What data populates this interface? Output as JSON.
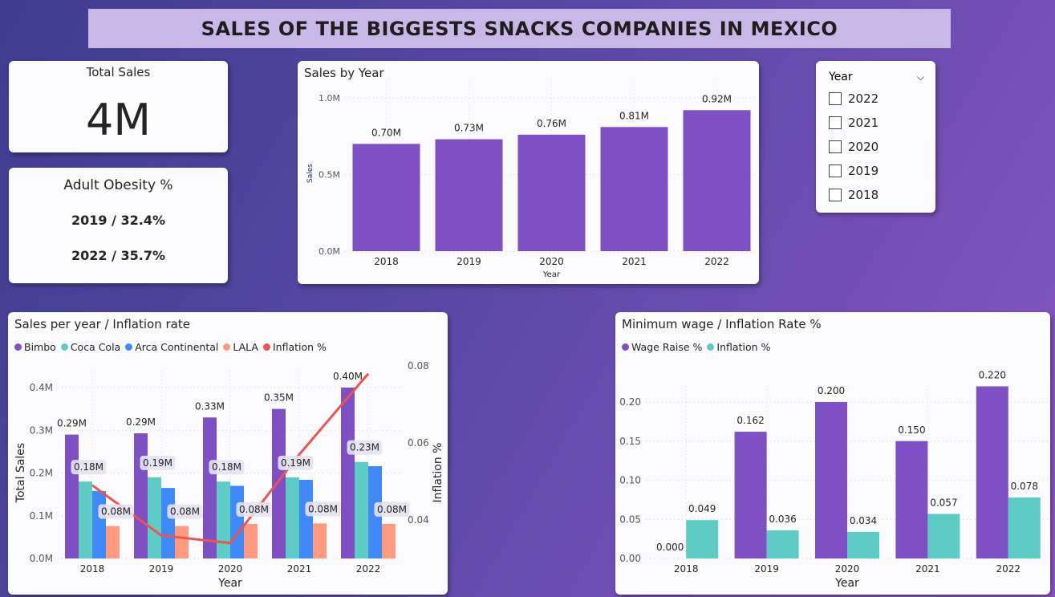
{
  "title": "SALES OF THE BIGGESTS SNACKS COMPANIES IN MEXICO",
  "total_sales": {
    "label": "Total Sales",
    "value": "4M"
  },
  "obesity": {
    "label": "Adult Obesity %",
    "line1": "2019 / 32.4%",
    "line2": "2022 / 35.7%"
  },
  "slicer": {
    "title": "Year",
    "icon": "chevron-down-icon",
    "options": [
      {
        "label": "2022",
        "checked": false
      },
      {
        "label": "2021",
        "checked": false
      },
      {
        "label": "2020",
        "checked": false
      },
      {
        "label": "2019",
        "checked": false
      },
      {
        "label": "2018",
        "checked": false
      }
    ]
  },
  "chart_data": [
    {
      "type": "bar",
      "title": "Sales by Year",
      "xlabel": "Year",
      "ylabel": "Sales",
      "categories": [
        "2018",
        "2019",
        "2020",
        "2021",
        "2022"
      ],
      "values": [
        0.7,
        0.73,
        0.76,
        0.81,
        0.92
      ],
      "labels": [
        "0.70M",
        "0.73M",
        "0.76M",
        "0.81M",
        "0.92M"
      ],
      "yticks": [
        "0.0M",
        "0.5M",
        "1.0M"
      ],
      "ylim": [
        0,
        1.0
      ],
      "unit": "M",
      "color": "#7f4fc4",
      "grid": true
    },
    {
      "type": "bar+line",
      "title": "Sales per year / Inflation rate",
      "xlabel": "Year",
      "ylabel": "Total Sales",
      "y2label": "Inflation %",
      "categories": [
        "2018",
        "2019",
        "2020",
        "2021",
        "2022"
      ],
      "series": [
        {
          "name": "Bimbo",
          "color": "#7f4fc4",
          "values": [
            0.29,
            0.293,
            0.33,
            0.35,
            0.4
          ],
          "labels": [
            "0.29M",
            "0.29M",
            "0.33M",
            "0.35M",
            "0.40M"
          ]
        },
        {
          "name": "Coca Cola",
          "color": "#5ecbc4",
          "values": [
            0.18,
            0.19,
            0.18,
            0.19,
            0.226
          ],
          "labels": [
            "0.18M",
            "0.19M",
            "0.18M",
            "0.19M",
            "0.23M"
          ]
        },
        {
          "name": "Arca Continental",
          "color": "#4189f8",
          "values": [
            0.158,
            0.165,
            0.17,
            0.184,
            0.216
          ],
          "labels": []
        },
        {
          "name": "LALA",
          "color": "#fd9a7f",
          "values": [
            0.076,
            0.076,
            0.081,
            0.082,
            0.081
          ],
          "labels": [
            "0.08M",
            "0.08M",
            "0.08M",
            "0.08M",
            "0.08M"
          ]
        },
        {
          "name": "Inflation %",
          "color": "#ec5454",
          "type": "line",
          "axis": "right",
          "values": [
            0.049,
            0.036,
            0.034,
            0.057,
            0.078
          ]
        }
      ],
      "yticks": [
        "0.0M",
        "0.1M",
        "0.2M",
        "0.3M",
        "0.4M"
      ],
      "ylim": [
        0,
        0.4
      ],
      "y2ticks": [
        "0.04",
        "0.06",
        "0.08"
      ],
      "y2lim": [
        0.03,
        0.08
      ],
      "legend": "top-left",
      "grid": true
    },
    {
      "type": "bar",
      "title": "Minimum wage / Inflation Rate %",
      "xlabel": "Year",
      "categories": [
        "2018",
        "2019",
        "2020",
        "2021",
        "2022"
      ],
      "series": [
        {
          "name": "Wage Raise %",
          "color": "#7f4fc4",
          "values": [
            0.0,
            0.162,
            0.2,
            0.15,
            0.22
          ],
          "labels": [
            "0.000",
            "0.162",
            "0.200",
            "0.150",
            "0.220"
          ]
        },
        {
          "name": "Inflation %",
          "color": "#5ecbc4",
          "values": [
            0.049,
            0.036,
            0.034,
            0.057,
            0.078
          ],
          "labels": [
            "0.049",
            "0.036",
            "0.034",
            "0.057",
            "0.078"
          ]
        }
      ],
      "yticks": [
        "0.00",
        "0.05",
        "0.10",
        "0.15",
        "0.20"
      ],
      "ylim": [
        0,
        0.2
      ],
      "legend": "top-left",
      "grid": true
    }
  ]
}
